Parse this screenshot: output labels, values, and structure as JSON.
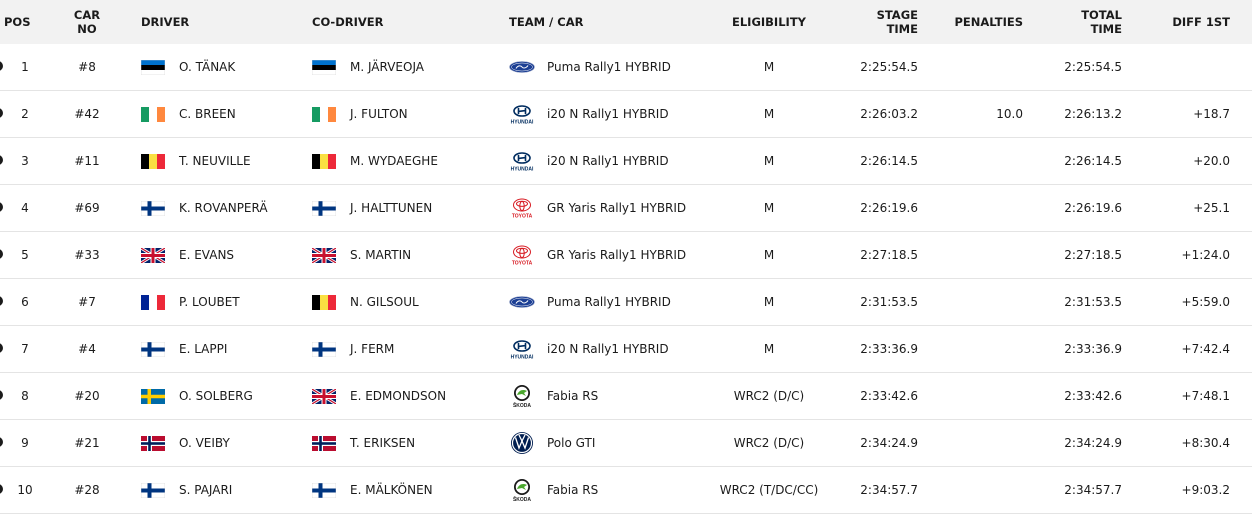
{
  "headers": {
    "pos": "POS",
    "car_no_1": "CAR",
    "car_no_2": "NO",
    "driver": "DRIVER",
    "co_driver": "CO-DRIVER",
    "team_car": "TEAM / CAR",
    "eligibility": "ELIGIBILITY",
    "stage_time_1": "STAGE",
    "stage_time_2": "TIME",
    "penalties": "PENALTIES",
    "total_time_1": "TOTAL",
    "total_time_2": "TIME",
    "diff_1st": "DIFF 1ST"
  },
  "rows": [
    {
      "pos": "1",
      "car": "#8",
      "driver": "O. TÄNAK",
      "driver_flag": "estonia",
      "co_driver": "M. JÄRVEOJA",
      "co_flag": "estonia",
      "brand": "ford",
      "car_name": "Puma Rally1 HYBRID",
      "eligibility": "M",
      "stage_time": "2:25:54.5",
      "penalties": "",
      "total_time": "2:25:54.5",
      "diff": ""
    },
    {
      "pos": "2",
      "car": "#42",
      "driver": "C. BREEN",
      "driver_flag": "ireland",
      "co_driver": "J. FULTON",
      "co_flag": "ireland",
      "brand": "hyundai",
      "car_name": "i20 N Rally1 HYBRID",
      "eligibility": "M",
      "stage_time": "2:26:03.2",
      "penalties": "10.0",
      "total_time": "2:26:13.2",
      "diff": "+18.7"
    },
    {
      "pos": "3",
      "car": "#11",
      "driver": "T. NEUVILLE",
      "driver_flag": "belgium",
      "co_driver": "M. WYDAEGHE",
      "co_flag": "belgium",
      "brand": "hyundai",
      "car_name": "i20 N Rally1 HYBRID",
      "eligibility": "M",
      "stage_time": "2:26:14.5",
      "penalties": "",
      "total_time": "2:26:14.5",
      "diff": "+20.0"
    },
    {
      "pos": "4",
      "car": "#69",
      "driver": "K. ROVANPERÄ",
      "driver_flag": "finland",
      "co_driver": "J. HALTTUNEN",
      "co_flag": "finland",
      "brand": "toyota",
      "car_name": "GR Yaris Rally1 HYBRID",
      "eligibility": "M",
      "stage_time": "2:26:19.6",
      "penalties": "",
      "total_time": "2:26:19.6",
      "diff": "+25.1"
    },
    {
      "pos": "5",
      "car": "#33",
      "driver": "E. EVANS",
      "driver_flag": "uk",
      "co_driver": "S. MARTIN",
      "co_flag": "uk",
      "brand": "toyota",
      "car_name": "GR Yaris Rally1 HYBRID",
      "eligibility": "M",
      "stage_time": "2:27:18.5",
      "penalties": "",
      "total_time": "2:27:18.5",
      "diff": "+1:24.0"
    },
    {
      "pos": "6",
      "car": "#7",
      "driver": "P. LOUBET",
      "driver_flag": "france",
      "co_driver": "N. GILSOUL",
      "co_flag": "belgium",
      "brand": "ford",
      "car_name": "Puma Rally1 HYBRID",
      "eligibility": "M",
      "stage_time": "2:31:53.5",
      "penalties": "",
      "total_time": "2:31:53.5",
      "diff": "+5:59.0"
    },
    {
      "pos": "7",
      "car": "#4",
      "driver": "E. LAPPI",
      "driver_flag": "finland",
      "co_driver": "J. FERM",
      "co_flag": "finland",
      "brand": "hyundai",
      "car_name": "i20 N Rally1 HYBRID",
      "eligibility": "M",
      "stage_time": "2:33:36.9",
      "penalties": "",
      "total_time": "2:33:36.9",
      "diff": "+7:42.4"
    },
    {
      "pos": "8",
      "car": "#20",
      "driver": "O. SOLBERG",
      "driver_flag": "sweden",
      "co_driver": "E. EDMONDSON",
      "co_flag": "uk",
      "brand": "skoda",
      "car_name": "Fabia RS",
      "eligibility": "WRC2 (D/C)",
      "stage_time": "2:33:42.6",
      "penalties": "",
      "total_time": "2:33:42.6",
      "diff": "+7:48.1"
    },
    {
      "pos": "9",
      "car": "#21",
      "driver": "O. VEIBY",
      "driver_flag": "norway",
      "co_driver": "T. ERIKSEN",
      "co_flag": "norway",
      "brand": "vw",
      "car_name": "Polo GTI",
      "eligibility": "WRC2 (D/C)",
      "stage_time": "2:34:24.9",
      "penalties": "",
      "total_time": "2:34:24.9",
      "diff": "+8:30.4"
    },
    {
      "pos": "10",
      "car": "#28",
      "driver": "S. PAJARI",
      "driver_flag": "finland",
      "co_driver": "E. MÄLKÖNEN",
      "co_flag": "finland",
      "brand": "skoda",
      "car_name": "Fabia RS",
      "eligibility": "WRC2 (T/DC/CC)",
      "stage_time": "2:34:57.7",
      "penalties": "",
      "total_time": "2:34:57.7",
      "diff": "+9:03.2"
    }
  ],
  "brand_logo_text": {
    "hyundai": "HYUNDAI",
    "toyota": "TOYOTA",
    "skoda": "ŠKODA"
  },
  "colors": {
    "header_bg": "#f2f2f2",
    "row_border": "#e4e4e4",
    "text": "#1b1b1b",
    "ford_blue": "#1c3f94",
    "hyundai_blue": "#002c5f",
    "toyota_red": "#d71921",
    "skoda_green": "#4ba82e",
    "vw_blue": "#001e50"
  }
}
